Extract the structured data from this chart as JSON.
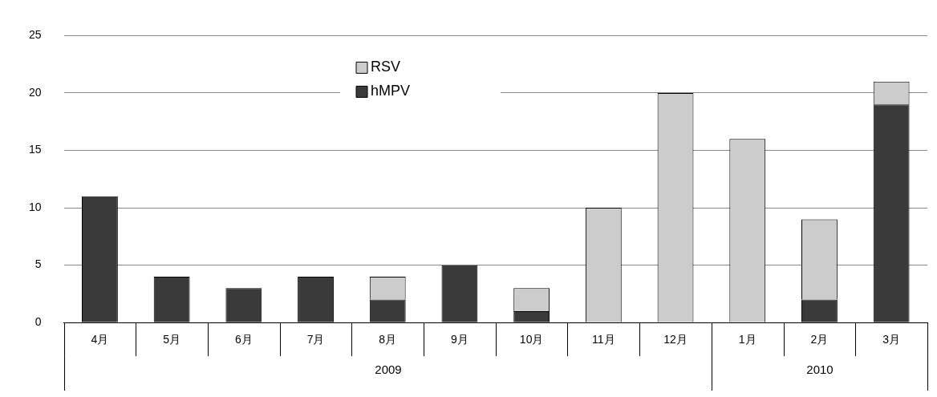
{
  "chart_data": {
    "type": "bar",
    "stacked": true,
    "categories": [
      "4月",
      "5月",
      "6月",
      "7月",
      "8月",
      "9月",
      "10月",
      "11月",
      "12月",
      "1月",
      "2月",
      "3月"
    ],
    "series": [
      {
        "name": "hMPV",
        "color": "#3a3a3a",
        "values": [
          11,
          4,
          3,
          4,
          2,
          5,
          1,
          0,
          0,
          0,
          2,
          19
        ]
      },
      {
        "name": "RSV",
        "color": "#cccccc",
        "values": [
          0,
          0,
          0,
          0,
          2,
          0,
          2,
          10,
          20,
          16,
          7,
          2
        ]
      }
    ],
    "ylim": [
      0,
      25
    ],
    "yticks": [
      0,
      5,
      10,
      15,
      20,
      25
    ],
    "grid": "y",
    "legend": "top",
    "annotations": [
      "2009",
      "2010"
    ]
  }
}
